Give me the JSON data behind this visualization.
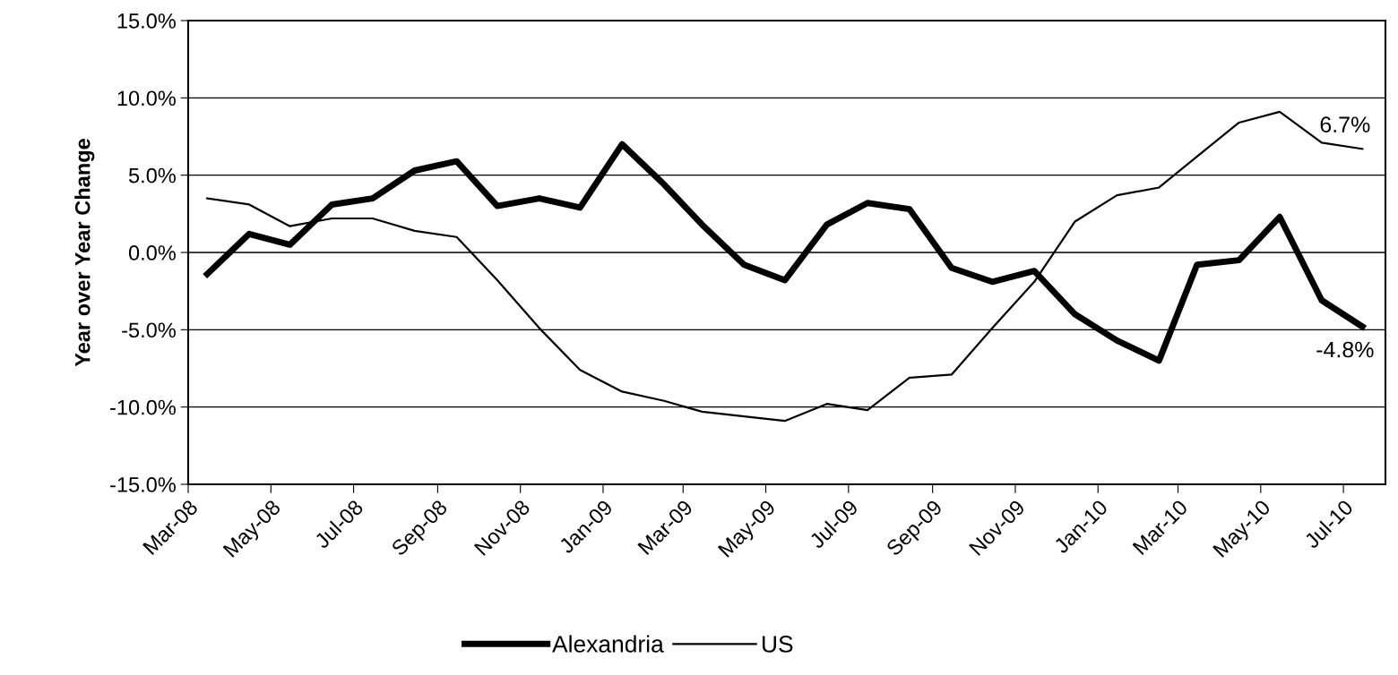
{
  "chart_data": {
    "type": "line",
    "ylabel": "Year over Year Change",
    "x": [
      "2008-03-15",
      "2008-04-15",
      "2008-05-15",
      "2008-06-15",
      "2008-07-15",
      "2008-08-15",
      "2008-09-15",
      "2008-10-15",
      "2008-11-15",
      "2008-12-15",
      "2009-01-15",
      "2009-02-15",
      "2009-03-15",
      "2009-04-15",
      "2009-05-15",
      "2009-06-15",
      "2009-07-15",
      "2009-08-15",
      "2009-09-15",
      "2009-10-15",
      "2009-11-15",
      "2009-12-15",
      "2010-01-15",
      "2010-02-15",
      "2010-03-15",
      "2010-04-15",
      "2010-05-15",
      "2010-06-15",
      "2010-07-15"
    ],
    "series": [
      {
        "name": "Alexandria",
        "color": "#000000",
        "values": [
          -1.4,
          1.2,
          0.5,
          3.1,
          3.5,
          5.3,
          5.9,
          3.0,
          3.5,
          2.9,
          7.0,
          4.4,
          1.8,
          -0.8,
          -1.8,
          1.8,
          3.2,
          2.8,
          -1.0,
          -1.9,
          -1.2,
          -4.0,
          -5.7,
          -7.0,
          -0.8,
          -0.5,
          2.3,
          -3.1,
          -4.8
        ]
      },
      {
        "name": "US",
        "color": "#000000",
        "values": [
          3.5,
          3.1,
          1.7,
          2.2,
          2.2,
          1.4,
          1.0,
          -1.8,
          -4.9,
          -7.6,
          -9.0,
          -9.6,
          -10.3,
          -10.6,
          -10.9,
          -9.8,
          -10.2,
          -8.1,
          -7.9,
          -4.9,
          -1.9,
          2.0,
          3.7,
          4.2,
          6.2,
          8.4,
          9.1,
          7.1,
          6.7
        ]
      }
    ],
    "xlim": [
      "2008-03-01",
      "2010-08-01"
    ],
    "xticks": [
      {
        "value": "2008-03-01",
        "label": "Mar-08"
      },
      {
        "value": "2008-05-01",
        "label": "May-08"
      },
      {
        "value": "2008-07-01",
        "label": "Jul-08"
      },
      {
        "value": "2008-09-01",
        "label": "Sep-08"
      },
      {
        "value": "2008-11-01",
        "label": "Nov-08"
      },
      {
        "value": "2009-01-01",
        "label": "Jan-09"
      },
      {
        "value": "2009-03-01",
        "label": "Mar-09"
      },
      {
        "value": "2009-05-01",
        "label": "May-09"
      },
      {
        "value": "2009-07-01",
        "label": "Jul-09"
      },
      {
        "value": "2009-09-01",
        "label": "Sep-09"
      },
      {
        "value": "2009-11-01",
        "label": "Nov-09"
      },
      {
        "value": "2010-01-01",
        "label": "Jan-10"
      },
      {
        "value": "2010-03-01",
        "label": "Mar-10"
      },
      {
        "value": "2010-05-01",
        "label": "May-10"
      },
      {
        "value": "2010-07-01",
        "label": "Jul-10"
      }
    ],
    "ylim": [
      -15,
      15
    ],
    "yticks": [
      {
        "value": -15,
        "label": "-15.0%"
      },
      {
        "value": -10,
        "label": "-10.0%"
      },
      {
        "value": -5,
        "label": "-5.0%"
      },
      {
        "value": 0,
        "label": "0.0%"
      },
      {
        "value": 5,
        "label": "5.0%"
      },
      {
        "value": 10,
        "label": "10.0%"
      },
      {
        "value": 15,
        "label": "15.0%"
      }
    ],
    "grid": "y",
    "legend": "bottom",
    "marker": "none",
    "line_style": "solid",
    "annotations": [
      {
        "text": "6.7%",
        "x": "2010-07-15",
        "y": 6.7
      },
      {
        "text": "-4.8%",
        "x": "2010-07-15",
        "y": -4.8
      }
    ]
  }
}
